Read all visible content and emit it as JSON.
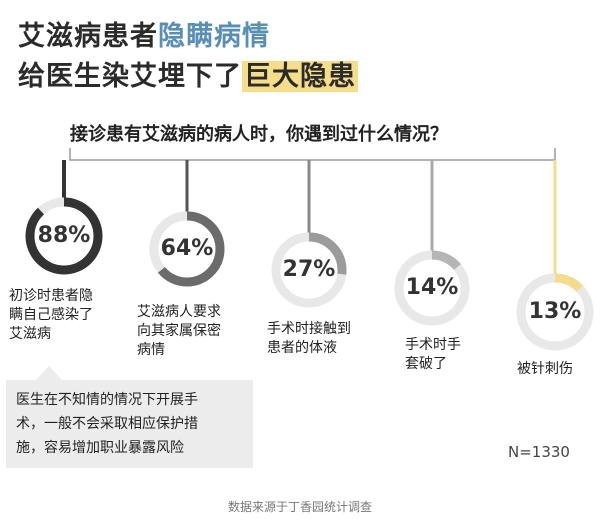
{
  "headline": {
    "line1_dark": "艾滋病患者",
    "line1_blue": "隐瞒病情",
    "line2_dark": "给医生染艾埋下了",
    "line2_highlight": "巨大隐患"
  },
  "colors": {
    "dark": "#2b2b2b",
    "blue": "#5a8fb4",
    "highlight": "#f5dd8a",
    "track": "#e8e8e8",
    "ring_dark": "#333333",
    "ring_mid": "#6b6b6b",
    "ring_light": "#9b9b9b",
    "ring_lighter": "#b5b5b5",
    "ring_yellow": "#f3dc8d"
  },
  "chart_data": {
    "type": "donut",
    "title": "接诊患有艾滋病的病人时，你遇到过什么情况？",
    "sample_size": "N=1330",
    "series": [
      {
        "label": "初诊时患者隐瞒自己感染了艾滋病",
        "display_label": "初诊时患者隐\n瞒自己感染了\n艾滋病",
        "value": 88,
        "value_label": "88%",
        "color": "#333333"
      },
      {
        "label": "艾滋病人要求向其家属保密病情",
        "display_label": "艾滋病人要求\n向其家属保密\n病情",
        "value": 64,
        "value_label": "64%",
        "color": "#6b6b6b"
      },
      {
        "label": "手术时接触到患者的体液",
        "display_label": "手术时接触到\n患者的体液",
        "value": 27,
        "value_label": "27%",
        "color": "#9b9b9b"
      },
      {
        "label": "手术时手套破了",
        "display_label": "手术时手\n套破了",
        "value": 14,
        "value_label": "14%",
        "color": "#b5b5b5"
      },
      {
        "label": "被针刺伤",
        "display_label": "被针刺伤",
        "value": 13,
        "value_label": "13%",
        "color": "#f3dc8d"
      }
    ]
  },
  "note": "医生在不知情的情况下开展手\n术，一般不会采取相应保护措\n施，容易增加职业暴露风险",
  "source": "数据来源于丁香园统计调查"
}
